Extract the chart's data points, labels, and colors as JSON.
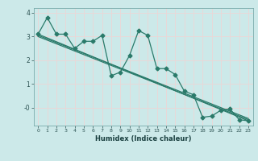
{
  "title": "",
  "xlabel": "Humidex (Indice chaleur)",
  "ylabel": "",
  "bg_color": "#cce9e9",
  "grid_color": "#e8d8d8",
  "line_color": "#2a7a6a",
  "xlim": [
    -0.5,
    23.5
  ],
  "ylim": [
    -0.75,
    4.2
  ],
  "yticks": [
    4,
    3,
    2,
    1,
    0
  ],
  "ytick_labels": [
    "4",
    "3",
    "2",
    "1",
    "-0"
  ],
  "xticks": [
    0,
    1,
    2,
    3,
    4,
    5,
    6,
    7,
    8,
    9,
    10,
    11,
    12,
    13,
    14,
    15,
    16,
    17,
    18,
    19,
    20,
    21,
    22,
    23
  ],
  "series": [
    [
      0,
      3.1
    ],
    [
      1,
      3.8
    ],
    [
      2,
      3.1
    ],
    [
      3,
      3.1
    ],
    [
      4,
      2.5
    ],
    [
      5,
      2.8
    ],
    [
      6,
      2.8
    ],
    [
      7,
      3.05
    ],
    [
      8,
      1.35
    ],
    [
      9,
      1.5
    ],
    [
      10,
      2.2
    ],
    [
      11,
      3.25
    ],
    [
      12,
      3.05
    ],
    [
      13,
      1.65
    ],
    [
      14,
      1.65
    ],
    [
      15,
      1.4
    ],
    [
      16,
      0.7
    ],
    [
      17,
      0.55
    ],
    [
      18,
      -0.4
    ],
    [
      19,
      -0.35
    ],
    [
      20,
      -0.1
    ],
    [
      21,
      -0.05
    ],
    [
      22,
      -0.5
    ],
    [
      23,
      -0.55
    ]
  ],
  "trend_lines": [
    {
      "x": [
        0,
        23
      ],
      "y": [
        3.1,
        -0.55
      ]
    },
    {
      "x": [
        0,
        23
      ],
      "y": [
        3.05,
        -0.45
      ]
    },
    {
      "x": [
        0,
        23
      ],
      "y": [
        3.0,
        -0.5
      ]
    }
  ],
  "marker_size": 2.5,
  "line_width": 0.9
}
